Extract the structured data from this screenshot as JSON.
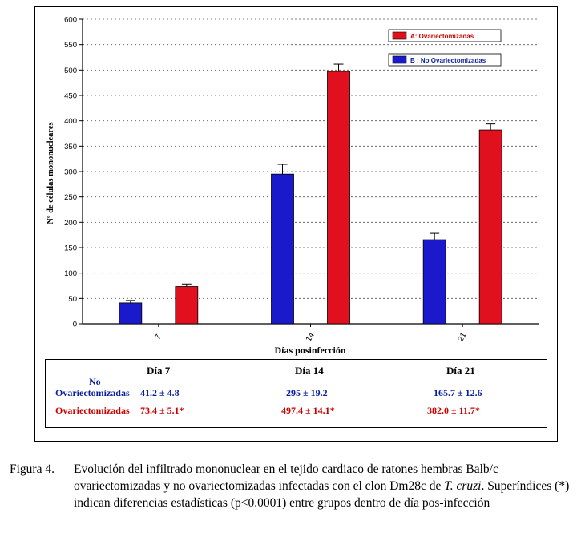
{
  "chart_data": {
    "type": "bar",
    "title": "",
    "xlabel": "Días posinfección",
    "ylabel": "Nº de células mononucleares",
    "ylim": [
      0,
      600
    ],
    "yticks": [
      0,
      50,
      100,
      150,
      200,
      250,
      300,
      350,
      400,
      450,
      500,
      550,
      600
    ],
    "categories": [
      "7",
      "14",
      "21"
    ],
    "grid": true,
    "legend_position": "top-right",
    "series": [
      {
        "name": "B : No Ovariectomizadas",
        "color": "#1a1acc",
        "values": [
          41.2,
          295,
          165.7
        ],
        "errors": [
          4.8,
          19.2,
          12.6
        ]
      },
      {
        "name": "A: Ovariectomizadas",
        "color": "#e0101e",
        "values": [
          73.4,
          497.4,
          382.0
        ],
        "errors": [
          5.1,
          14.1,
          11.7
        ]
      }
    ]
  },
  "table": {
    "headers": [
      "Día 7",
      "Día 14",
      "Día 21"
    ],
    "rows": [
      {
        "label_line1": "No",
        "label_line2": "Ovariectomizadas",
        "cells": [
          "41.2 ± 4.8",
          "295 ± 19.2",
          "165.7 ± 12.6"
        ]
      },
      {
        "label_line1": "",
        "label_line2": "Ovariectomizadas",
        "cells": [
          "73.4 ± 5.1*",
          "497.4 ± 14.1*",
          "382.0 ± 11.7*"
        ]
      }
    ]
  },
  "caption": {
    "label": "Figura 4.",
    "text_before": "Evolución del infiltrado mononuclear en el tejido cardiaco de ratones hembras Balb/c ovariectomizadas y no ovariectomizadas infectadas con el clon Dm28c de ",
    "text_italic": "T. cruzi",
    "text_after": ". Superíndices (*) indican diferencias estadísticas (p<0.0001) entre grupos dentro de día pos-infección"
  }
}
